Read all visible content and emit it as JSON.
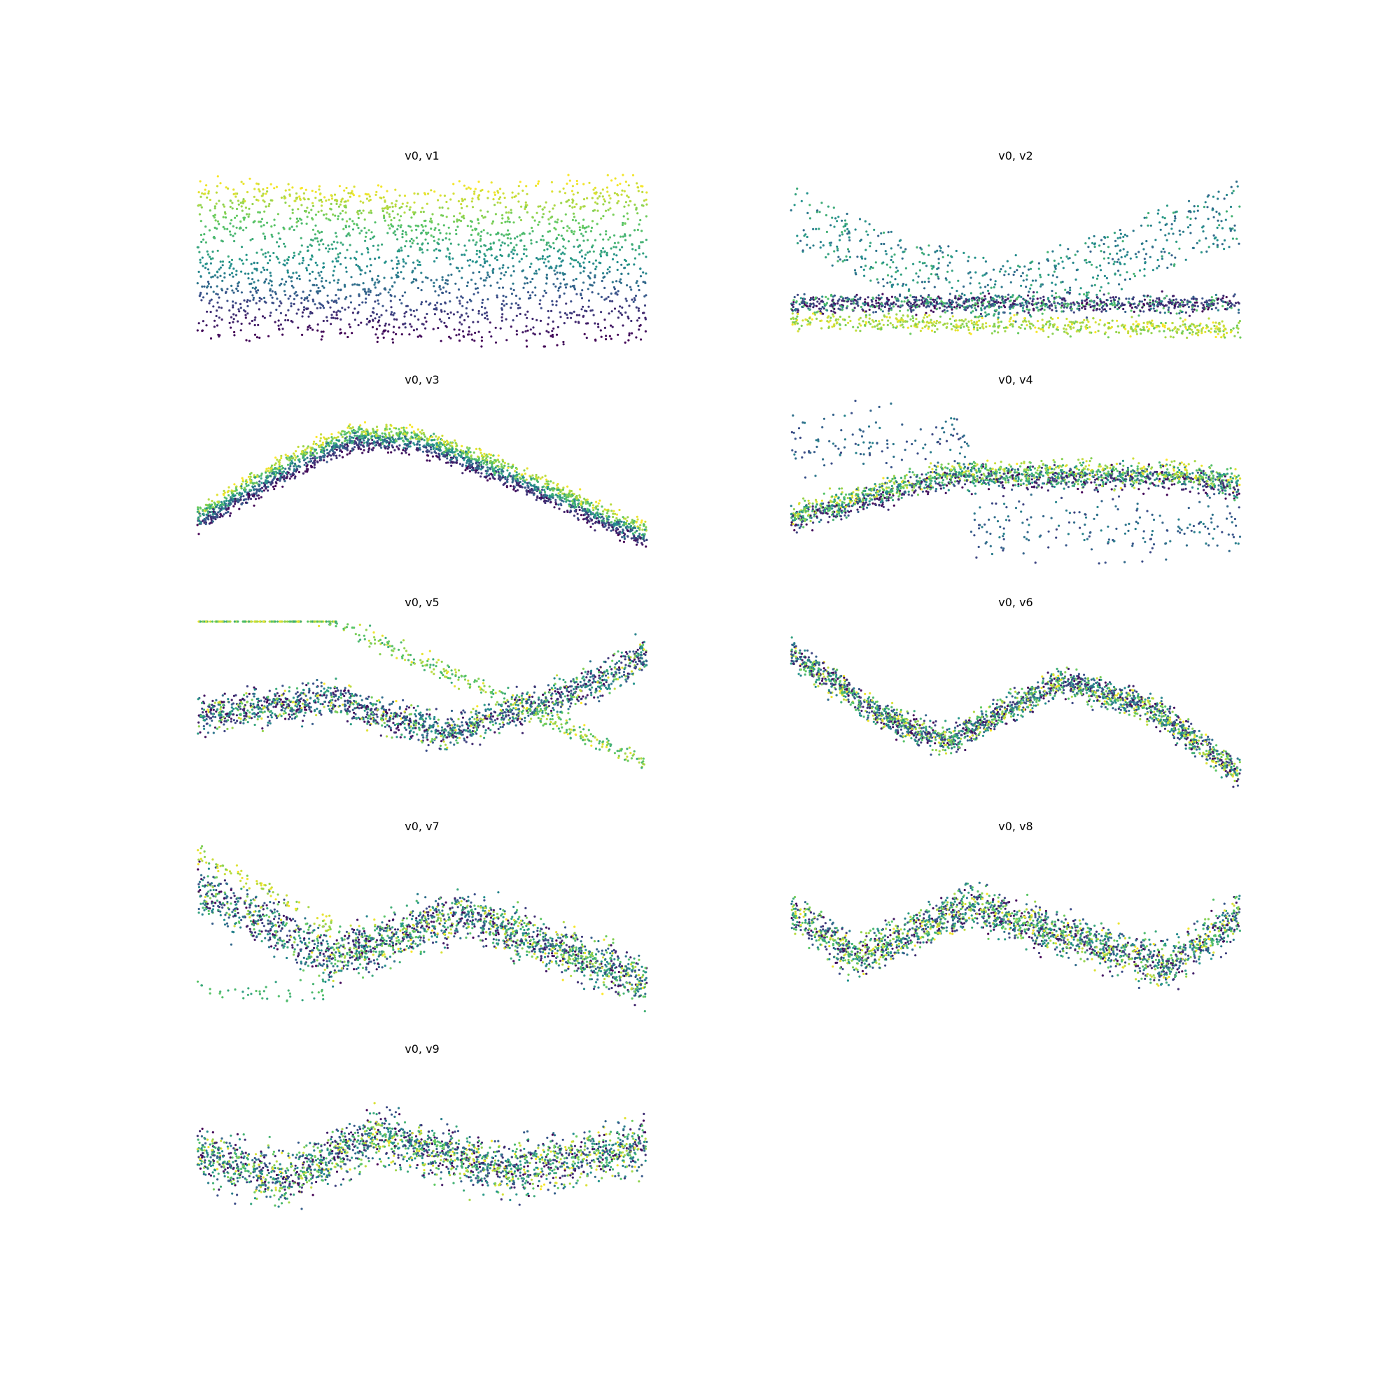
{
  "figure": {
    "layout": "5 rows x 2 columns grid of scatter panels, axes hidden",
    "colormap": "viridis",
    "colormap_stops": [
      "#440154",
      "#3b528b",
      "#21918c",
      "#5ec962",
      "#fde725"
    ]
  },
  "chart_data": [
    {
      "type": "scatter",
      "title": "v0, v1",
      "xlabel": "",
      "ylabel": "",
      "axes_visible": false,
      "grid": false,
      "n_points": 2200,
      "profile": [
        [
          0.0,
          0.5
        ],
        [
          1.0,
          0.5
        ]
      ],
      "band": "wide stratified by color, yellow top, purple bottom"
    },
    {
      "type": "scatter",
      "title": "v0, v2",
      "xlabel": "",
      "ylabel": "",
      "axes_visible": false,
      "grid": false,
      "n_points": 2200,
      "profile": [
        [
          0.0,
          0.92
        ],
        [
          0.25,
          0.6
        ],
        [
          0.45,
          0.48
        ],
        [
          0.6,
          0.55
        ],
        [
          0.8,
          0.75
        ],
        [
          1.0,
          0.95
        ]
      ],
      "band": "teal upper V plus dense low band"
    },
    {
      "type": "scatter",
      "title": "v0, v3",
      "xlabel": "",
      "ylabel": "",
      "axes_visible": false,
      "grid": false,
      "n_points": 2200,
      "profile": [
        [
          0.0,
          0.3
        ],
        [
          0.2,
          0.6
        ],
        [
          0.35,
          0.78
        ],
        [
          0.5,
          0.75
        ],
        [
          0.7,
          0.55
        ],
        [
          1.0,
          0.2
        ]
      ],
      "band": "narrow arch"
    },
    {
      "type": "scatter",
      "title": "v0, v4",
      "xlabel": "",
      "ylabel": "",
      "axes_visible": false,
      "grid": false,
      "n_points": 2200,
      "profile": [
        [
          0.0,
          0.3
        ],
        [
          0.2,
          0.45
        ],
        [
          0.35,
          0.55
        ],
        [
          0.6,
          0.55
        ],
        [
          0.85,
          0.55
        ],
        [
          1.0,
          0.5
        ]
      ],
      "band": "rising band with scattered blue cloud"
    },
    {
      "type": "scatter",
      "title": "v0, v5",
      "xlabel": "",
      "ylabel": "",
      "axes_visible": false,
      "grid": false,
      "n_points": 2200,
      "profile": [
        [
          0.0,
          0.45
        ],
        [
          0.3,
          0.55
        ],
        [
          0.55,
          0.35
        ],
        [
          0.8,
          0.55
        ],
        [
          1.0,
          0.8
        ]
      ],
      "band": "crossing bands"
    },
    {
      "type": "scatter",
      "title": "v0, v6",
      "xlabel": "",
      "ylabel": "",
      "axes_visible": false,
      "grid": false,
      "n_points": 2200,
      "profile": [
        [
          0.0,
          0.82
        ],
        [
          0.2,
          0.45
        ],
        [
          0.35,
          0.3
        ],
        [
          0.6,
          0.65
        ],
        [
          0.8,
          0.5
        ],
        [
          1.0,
          0.1
        ]
      ],
      "band": "wave"
    },
    {
      "type": "scatter",
      "title": "v0, v7",
      "xlabel": "",
      "ylabel": "",
      "axes_visible": false,
      "grid": false,
      "n_points": 2200,
      "profile": [
        [
          0.0,
          0.75
        ],
        [
          0.3,
          0.35
        ],
        [
          0.6,
          0.6
        ],
        [
          1.0,
          0.2
        ]
      ],
      "band": "descending diagonals with wide scatter"
    },
    {
      "type": "scatter",
      "title": "v0, v8",
      "xlabel": "",
      "ylabel": "",
      "axes_visible": false,
      "grid": false,
      "n_points": 2200,
      "profile": [
        [
          0.0,
          0.6
        ],
        [
          0.15,
          0.35
        ],
        [
          0.4,
          0.65
        ],
        [
          0.7,
          0.4
        ],
        [
          0.85,
          0.3
        ],
        [
          1.0,
          0.6
        ]
      ],
      "band": "noisy wave"
    },
    {
      "type": "scatter",
      "title": "v0, v9",
      "xlabel": "",
      "ylabel": "",
      "axes_visible": false,
      "grid": false,
      "n_points": 2200,
      "profile": [
        [
          0.0,
          0.5
        ],
        [
          0.2,
          0.35
        ],
        [
          0.4,
          0.6
        ],
        [
          0.7,
          0.4
        ],
        [
          1.0,
          0.55
        ]
      ],
      "band": "noisy undulating band"
    }
  ]
}
